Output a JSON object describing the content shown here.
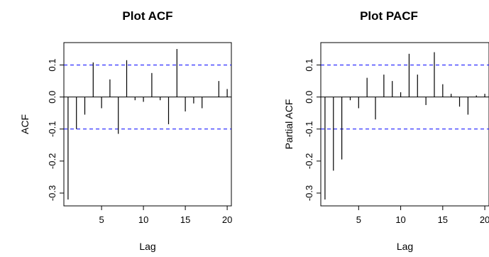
{
  "chart_data": [
    {
      "type": "bar",
      "title": "Plot ACF",
      "xlabel": "Lag",
      "ylabel": "ACF",
      "x": [
        1,
        2,
        3,
        4,
        5,
        6,
        7,
        8,
        9,
        10,
        11,
        12,
        13,
        14,
        15,
        16,
        17,
        18,
        19,
        20
      ],
      "values": [
        -0.32,
        -0.1,
        -0.055,
        0.108,
        -0.035,
        0.055,
        -0.115,
        0.115,
        -0.01,
        -0.015,
        0.075,
        -0.01,
        -0.085,
        0.15,
        -0.045,
        -0.02,
        -0.035,
        0.0,
        0.05,
        0.025
      ],
      "xlim": [
        0.5,
        20.5
      ],
      "ylim": [
        -0.34,
        0.17
      ],
      "xticks": [
        5,
        10,
        15,
        20
      ],
      "yticks": [
        -0.3,
        -0.2,
        -0.1,
        0.0,
        0.1
      ],
      "ytick_labels": [
        "-0.3",
        "-0.2",
        "-0.1",
        "0.0",
        "0.1"
      ],
      "confidence_bounds": [
        0.1,
        -0.1
      ],
      "colors": {
        "bars": "#000000",
        "bounds": "#0000ff"
      }
    },
    {
      "type": "bar",
      "title": "Plot PACF",
      "xlabel": "Lag",
      "ylabel": "Partial ACF",
      "x": [
        1,
        2,
        3,
        4,
        5,
        6,
        7,
        8,
        9,
        10,
        11,
        12,
        13,
        14,
        15,
        16,
        17,
        18,
        19,
        20
      ],
      "values": [
        -0.32,
        -0.23,
        -0.195,
        -0.01,
        -0.035,
        0.06,
        -0.07,
        0.07,
        0.05,
        0.015,
        0.135,
        0.07,
        -0.025,
        0.14,
        0.04,
        0.01,
        -0.03,
        -0.055,
        0.005,
        0.01
      ],
      "xlim": [
        0.5,
        20.5
      ],
      "ylim": [
        -0.34,
        0.17
      ],
      "xticks": [
        5,
        10,
        15,
        20
      ],
      "yticks": [
        -0.3,
        -0.2,
        -0.1,
        0.0,
        0.1
      ],
      "ytick_labels": [
        "-0.3",
        "-0.2",
        "-0.1",
        "0.0",
        "0.1"
      ],
      "confidence_bounds": [
        0.1,
        -0.1
      ],
      "colors": {
        "bars": "#000000",
        "bounds": "#0000ff"
      }
    }
  ]
}
